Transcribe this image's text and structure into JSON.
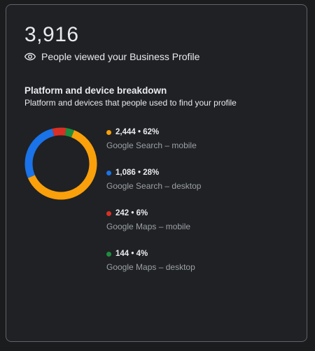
{
  "header": {
    "total": "3,916",
    "views_label": "People viewed your Business Profile",
    "icon": "eye-icon"
  },
  "breakdown": {
    "title": "Platform and device breakdown",
    "subtitle": "Platform and devices that people used to find your profile"
  },
  "chart_data": {
    "type": "pie",
    "style": "donut",
    "series": [
      {
        "label": "Google Search – mobile",
        "value": 2444,
        "display": "2,444 • 62%",
        "percent": 62,
        "color": "#f9a00b"
      },
      {
        "label": "Google Search – desktop",
        "value": 1086,
        "display": "1,086 • 28%",
        "percent": 28,
        "color": "#1a73e8"
      },
      {
        "label": "Google Maps – mobile",
        "value": 242,
        "display": "242 • 6%",
        "percent": 6,
        "color": "#d93025"
      },
      {
        "label": "Google Maps – desktop",
        "value": 144,
        "display": "144 • 4%",
        "percent": 4,
        "color": "#1e8e3e"
      }
    ]
  }
}
